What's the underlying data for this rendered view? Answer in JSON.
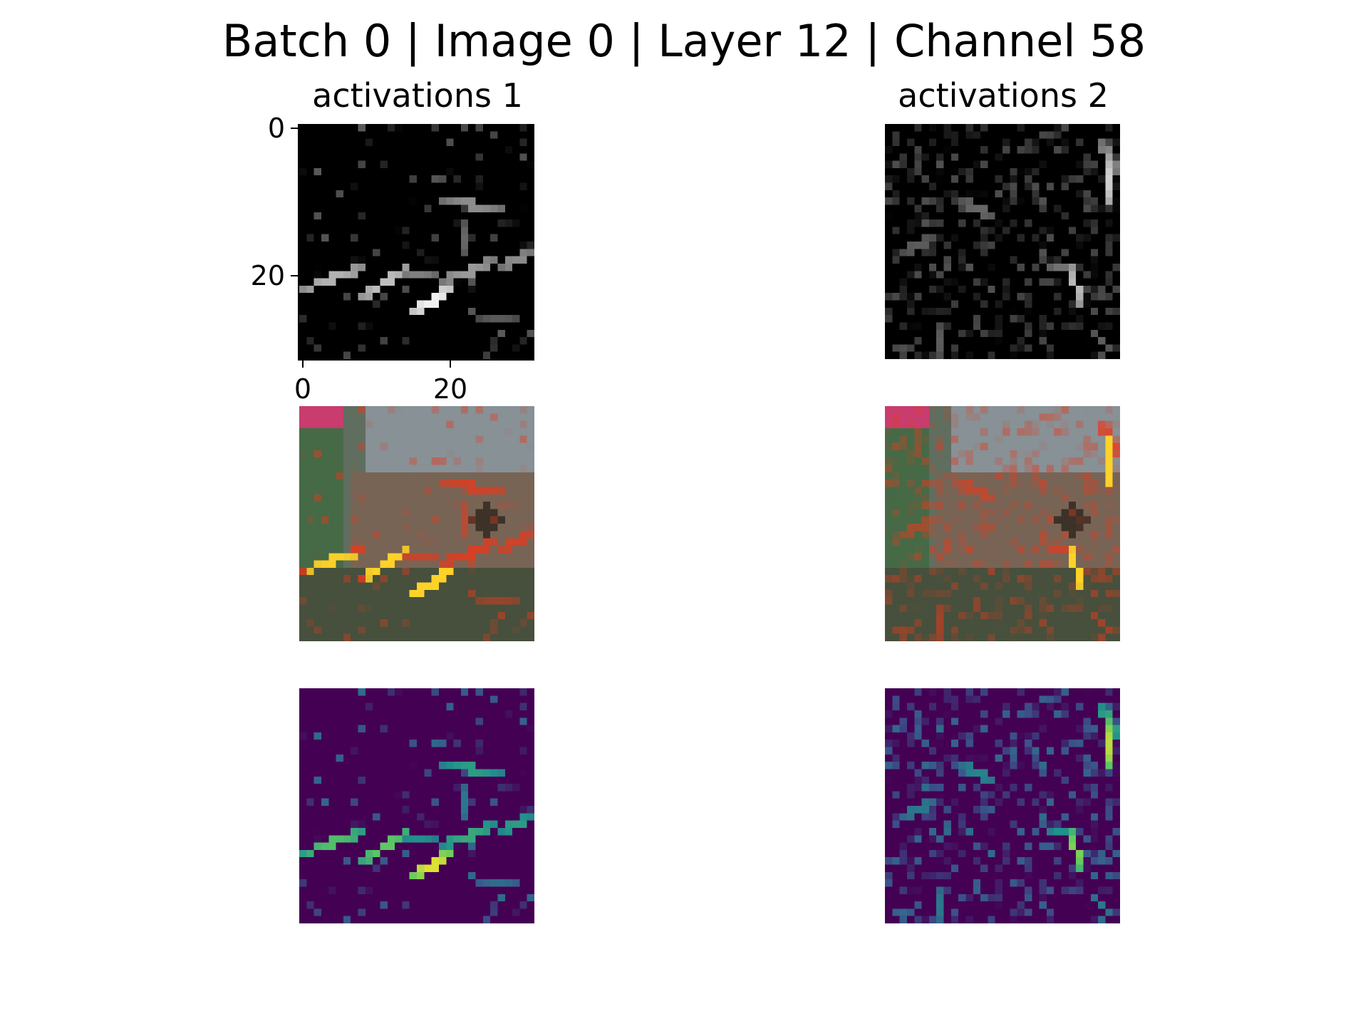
{
  "chart_data": {
    "title": "Batch 0 | Image 0 | Layer 12 | Channel 58",
    "type": "heatmap",
    "grid_size": 32,
    "panels": [
      {
        "column": 1,
        "row": 1,
        "title": "activations 1",
        "kind": "grayscale activation map",
        "xticks": [
          "0",
          "20"
        ],
        "yticks": [
          "0",
          "20"
        ],
        "tick_values": [
          0,
          20
        ]
      },
      {
        "column": 2,
        "row": 1,
        "title": "activations 2",
        "kind": "grayscale activation map"
      },
      {
        "column": 1,
        "row": 2,
        "kind": "activation overlay on input image (hot colormap)"
      },
      {
        "column": 2,
        "row": 2,
        "kind": "activation overlay on input image (hot colormap)"
      },
      {
        "column": 1,
        "row": 3,
        "kind": "activation map (viridis colormap)"
      },
      {
        "column": 2,
        "row": 3,
        "kind": "activation map (viridis colormap)"
      }
    ]
  },
  "colors": {
    "viridis_low": "#440154",
    "viridis_mid": "#21918c",
    "viridis_high": "#fde725",
    "hot_mid": "#e8391c",
    "hot_high": "#ffd21f",
    "grayscale_low": "#000000",
    "grayscale_high": "#ffffff"
  }
}
